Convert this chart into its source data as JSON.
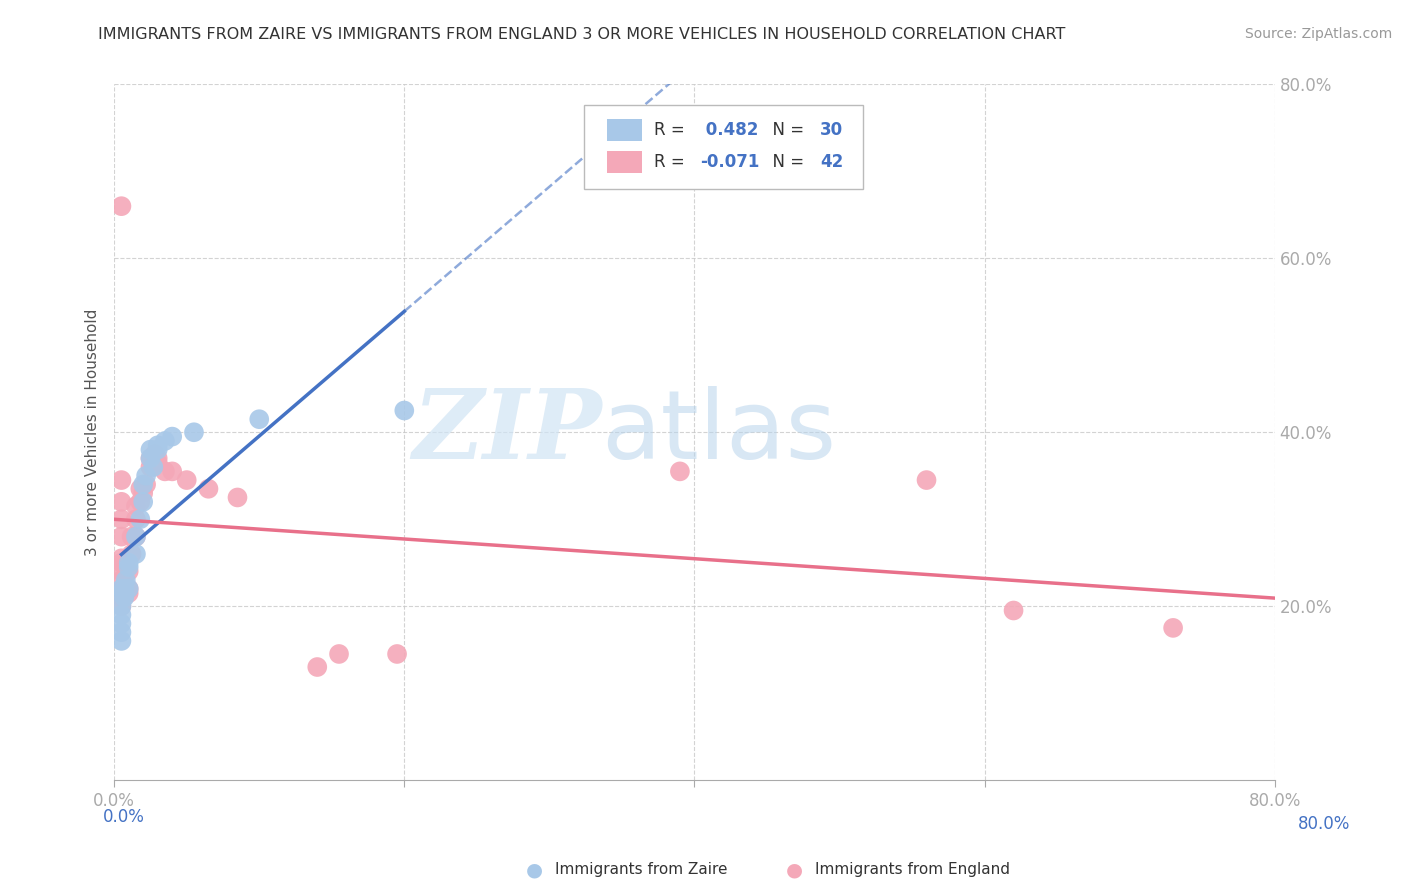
{
  "title": "IMMIGRANTS FROM ZAIRE VS IMMIGRANTS FROM ENGLAND 3 OR MORE VEHICLES IN HOUSEHOLD CORRELATION CHART",
  "source": "Source: ZipAtlas.com",
  "ylabel": "3 or more Vehicles in Household",
  "xlim": [
    0.0,
    0.8
  ],
  "ylim": [
    0.0,
    0.8
  ],
  "xticks": [
    0.0,
    0.2,
    0.4,
    0.6,
    0.8
  ],
  "yticks": [
    0.2,
    0.4,
    0.6,
    0.8
  ],
  "xtick_labels": [
    "0.0%",
    "",
    "",
    "",
    "80.0%"
  ],
  "ytick_labels": [
    "20.0%",
    "40.0%",
    "60.0%",
    "80.0%"
  ],
  "zaire_color": "#a8c8e8",
  "england_color": "#f4a8b8",
  "zaire_line_color": "#4472c4",
  "england_line_color": "#e8708a",
  "zaire_R": 0.482,
  "zaire_N": 30,
  "england_R": -0.071,
  "england_N": 42,
  "background_color": "#ffffff",
  "grid_color": "#c8c8c8",
  "tick_color": "#4472c4",
  "zaire_points": [
    [
      0.005,
      0.18
    ],
    [
      0.005,
      0.2
    ],
    [
      0.005,
      0.22
    ],
    [
      0.005,
      0.215
    ],
    [
      0.005,
      0.19
    ],
    [
      0.005,
      0.17
    ],
    [
      0.005,
      0.16
    ],
    [
      0.007,
      0.21
    ],
    [
      0.007,
      0.215
    ],
    [
      0.007,
      0.22
    ],
    [
      0.008,
      0.23
    ],
    [
      0.01,
      0.245
    ],
    [
      0.01,
      0.25
    ],
    [
      0.01,
      0.22
    ],
    [
      0.015,
      0.26
    ],
    [
      0.015,
      0.28
    ],
    [
      0.018,
      0.3
    ],
    [
      0.02,
      0.32
    ],
    [
      0.02,
      0.34
    ],
    [
      0.022,
      0.35
    ],
    [
      0.025,
      0.37
    ],
    [
      0.025,
      0.38
    ],
    [
      0.027,
      0.36
    ],
    [
      0.03,
      0.38
    ],
    [
      0.03,
      0.385
    ],
    [
      0.035,
      0.39
    ],
    [
      0.04,
      0.395
    ],
    [
      0.055,
      0.4
    ],
    [
      0.1,
      0.415
    ],
    [
      0.2,
      0.425
    ]
  ],
  "england_points": [
    [
      0.005,
      0.2
    ],
    [
      0.005,
      0.21
    ],
    [
      0.005,
      0.215
    ],
    [
      0.005,
      0.22
    ],
    [
      0.005,
      0.23
    ],
    [
      0.005,
      0.24
    ],
    [
      0.005,
      0.25
    ],
    [
      0.005,
      0.255
    ],
    [
      0.005,
      0.28
    ],
    [
      0.005,
      0.3
    ],
    [
      0.005,
      0.32
    ],
    [
      0.005,
      0.345
    ],
    [
      0.005,
      0.66
    ],
    [
      0.01,
      0.215
    ],
    [
      0.01,
      0.22
    ],
    [
      0.01,
      0.24
    ],
    [
      0.012,
      0.26
    ],
    [
      0.012,
      0.28
    ],
    [
      0.015,
      0.28
    ],
    [
      0.015,
      0.3
    ],
    [
      0.015,
      0.315
    ],
    [
      0.018,
      0.32
    ],
    [
      0.018,
      0.335
    ],
    [
      0.02,
      0.33
    ],
    [
      0.022,
      0.34
    ],
    [
      0.025,
      0.36
    ],
    [
      0.025,
      0.37
    ],
    [
      0.028,
      0.375
    ],
    [
      0.03,
      0.365
    ],
    [
      0.03,
      0.37
    ],
    [
      0.035,
      0.355
    ],
    [
      0.04,
      0.355
    ],
    [
      0.05,
      0.345
    ],
    [
      0.065,
      0.335
    ],
    [
      0.085,
      0.325
    ],
    [
      0.14,
      0.13
    ],
    [
      0.155,
      0.145
    ],
    [
      0.195,
      0.145
    ],
    [
      0.39,
      0.355
    ],
    [
      0.56,
      0.345
    ],
    [
      0.62,
      0.195
    ],
    [
      0.73,
      0.175
    ]
  ]
}
